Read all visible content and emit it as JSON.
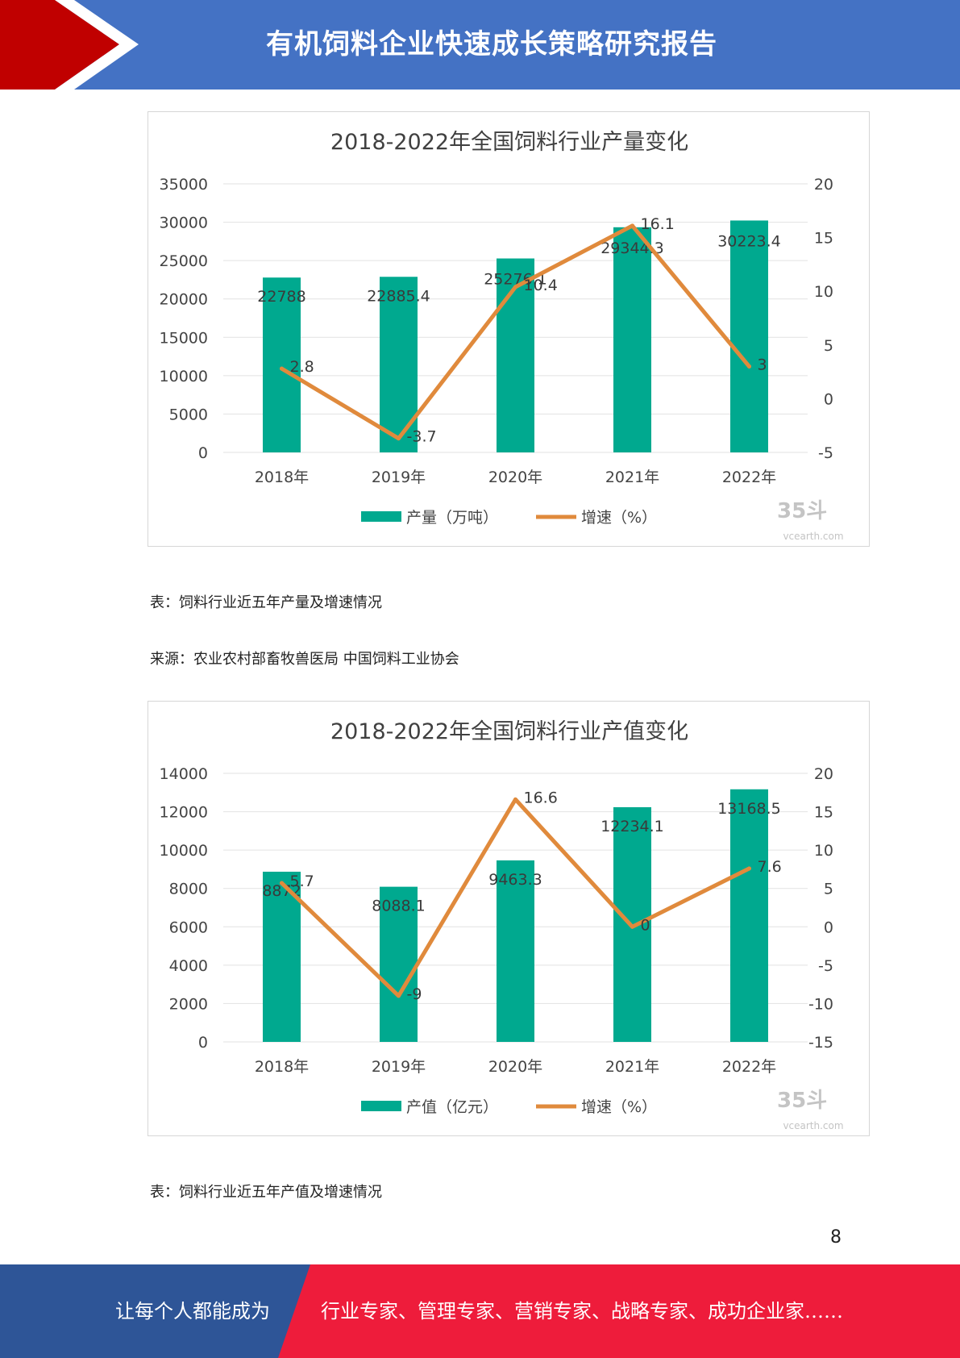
{
  "header": {
    "title": "有机饲料企业快速成长策略研究报告",
    "colors": {
      "band": "#4472c4",
      "accent_red": "#c00000"
    }
  },
  "charts": [
    {
      "type": "bar+line",
      "title": "2018-2022年全国饲料行业产量变化",
      "categories": [
        "2018年",
        "2019年",
        "2020年",
        "2021年",
        "2022年"
      ],
      "left_axis": {
        "min": 0,
        "max": 35000,
        "ticks": [
          0,
          5000,
          10000,
          15000,
          20000,
          25000,
          30000,
          35000
        ]
      },
      "right_axis": {
        "min": -5,
        "max": 20,
        "ticks": [
          -5,
          0,
          5,
          10,
          15,
          20
        ]
      },
      "bar_series": {
        "name": "产量（万吨）",
        "values": [
          22788,
          22885.4,
          25276.1,
          29344.3,
          30223.4
        ],
        "labels": [
          "22788",
          "22885.4",
          "25276.1",
          "29344.3",
          "30223.4"
        ],
        "color": "#00a98f"
      },
      "line_series": {
        "name": "增速（%）",
        "values": [
          2.8,
          -3.7,
          10.4,
          16.1,
          3
        ],
        "labels": [
          "2.8",
          "-3.7",
          "10.4",
          "16.1",
          "3"
        ],
        "color": "#e08a3c"
      },
      "legend_position": "bottom",
      "grid": true
    },
    {
      "type": "bar+line",
      "title": "2018-2022年全国饲料行业产值变化",
      "categories": [
        "2018年",
        "2019年",
        "2020年",
        "2021年",
        "2022年"
      ],
      "left_axis": {
        "min": 0,
        "max": 14000,
        "ticks": [
          0,
          2000,
          4000,
          6000,
          8000,
          10000,
          12000,
          14000
        ]
      },
      "right_axis": {
        "min": -15,
        "max": 20,
        "ticks": [
          -15,
          -10,
          -5,
          0,
          5,
          10,
          15,
          20
        ]
      },
      "bar_series": {
        "name": "产值（亿元）",
        "values": [
          8872,
          8088.1,
          9463.3,
          12234.1,
          13168.5
        ],
        "labels": [
          "8872",
          "8088.1",
          "9463.3",
          "12234.1",
          "13168.5"
        ],
        "color": "#00a98f"
      },
      "line_series": {
        "name": "增速（%）",
        "values": [
          5.7,
          -9,
          16.6,
          0,
          7.6
        ],
        "labels": [
          "5.7",
          "-9",
          "16.6",
          "0",
          "7.6"
        ],
        "color": "#e08a3c"
      },
      "legend_position": "bottom",
      "grid": true
    }
  ],
  "captions": {
    "chart1_table": "表：饲料行业近五年产量及增速情况",
    "chart1_source": "来源：农业农村部畜牧兽医局 中国饲料工业协会",
    "chart2_table": "表：饲料行业近五年产值及增速情况"
  },
  "watermark": {
    "text": "35斗",
    "url": "vcearth.com"
  },
  "page_number": "8",
  "footer": {
    "left": "让每个人都能成为",
    "right": "行业专家、管理专家、营销专家、战略专家、成功企业家……",
    "colors": {
      "left_band": "#2e5597",
      "right_band": "#ee1c3b"
    }
  }
}
